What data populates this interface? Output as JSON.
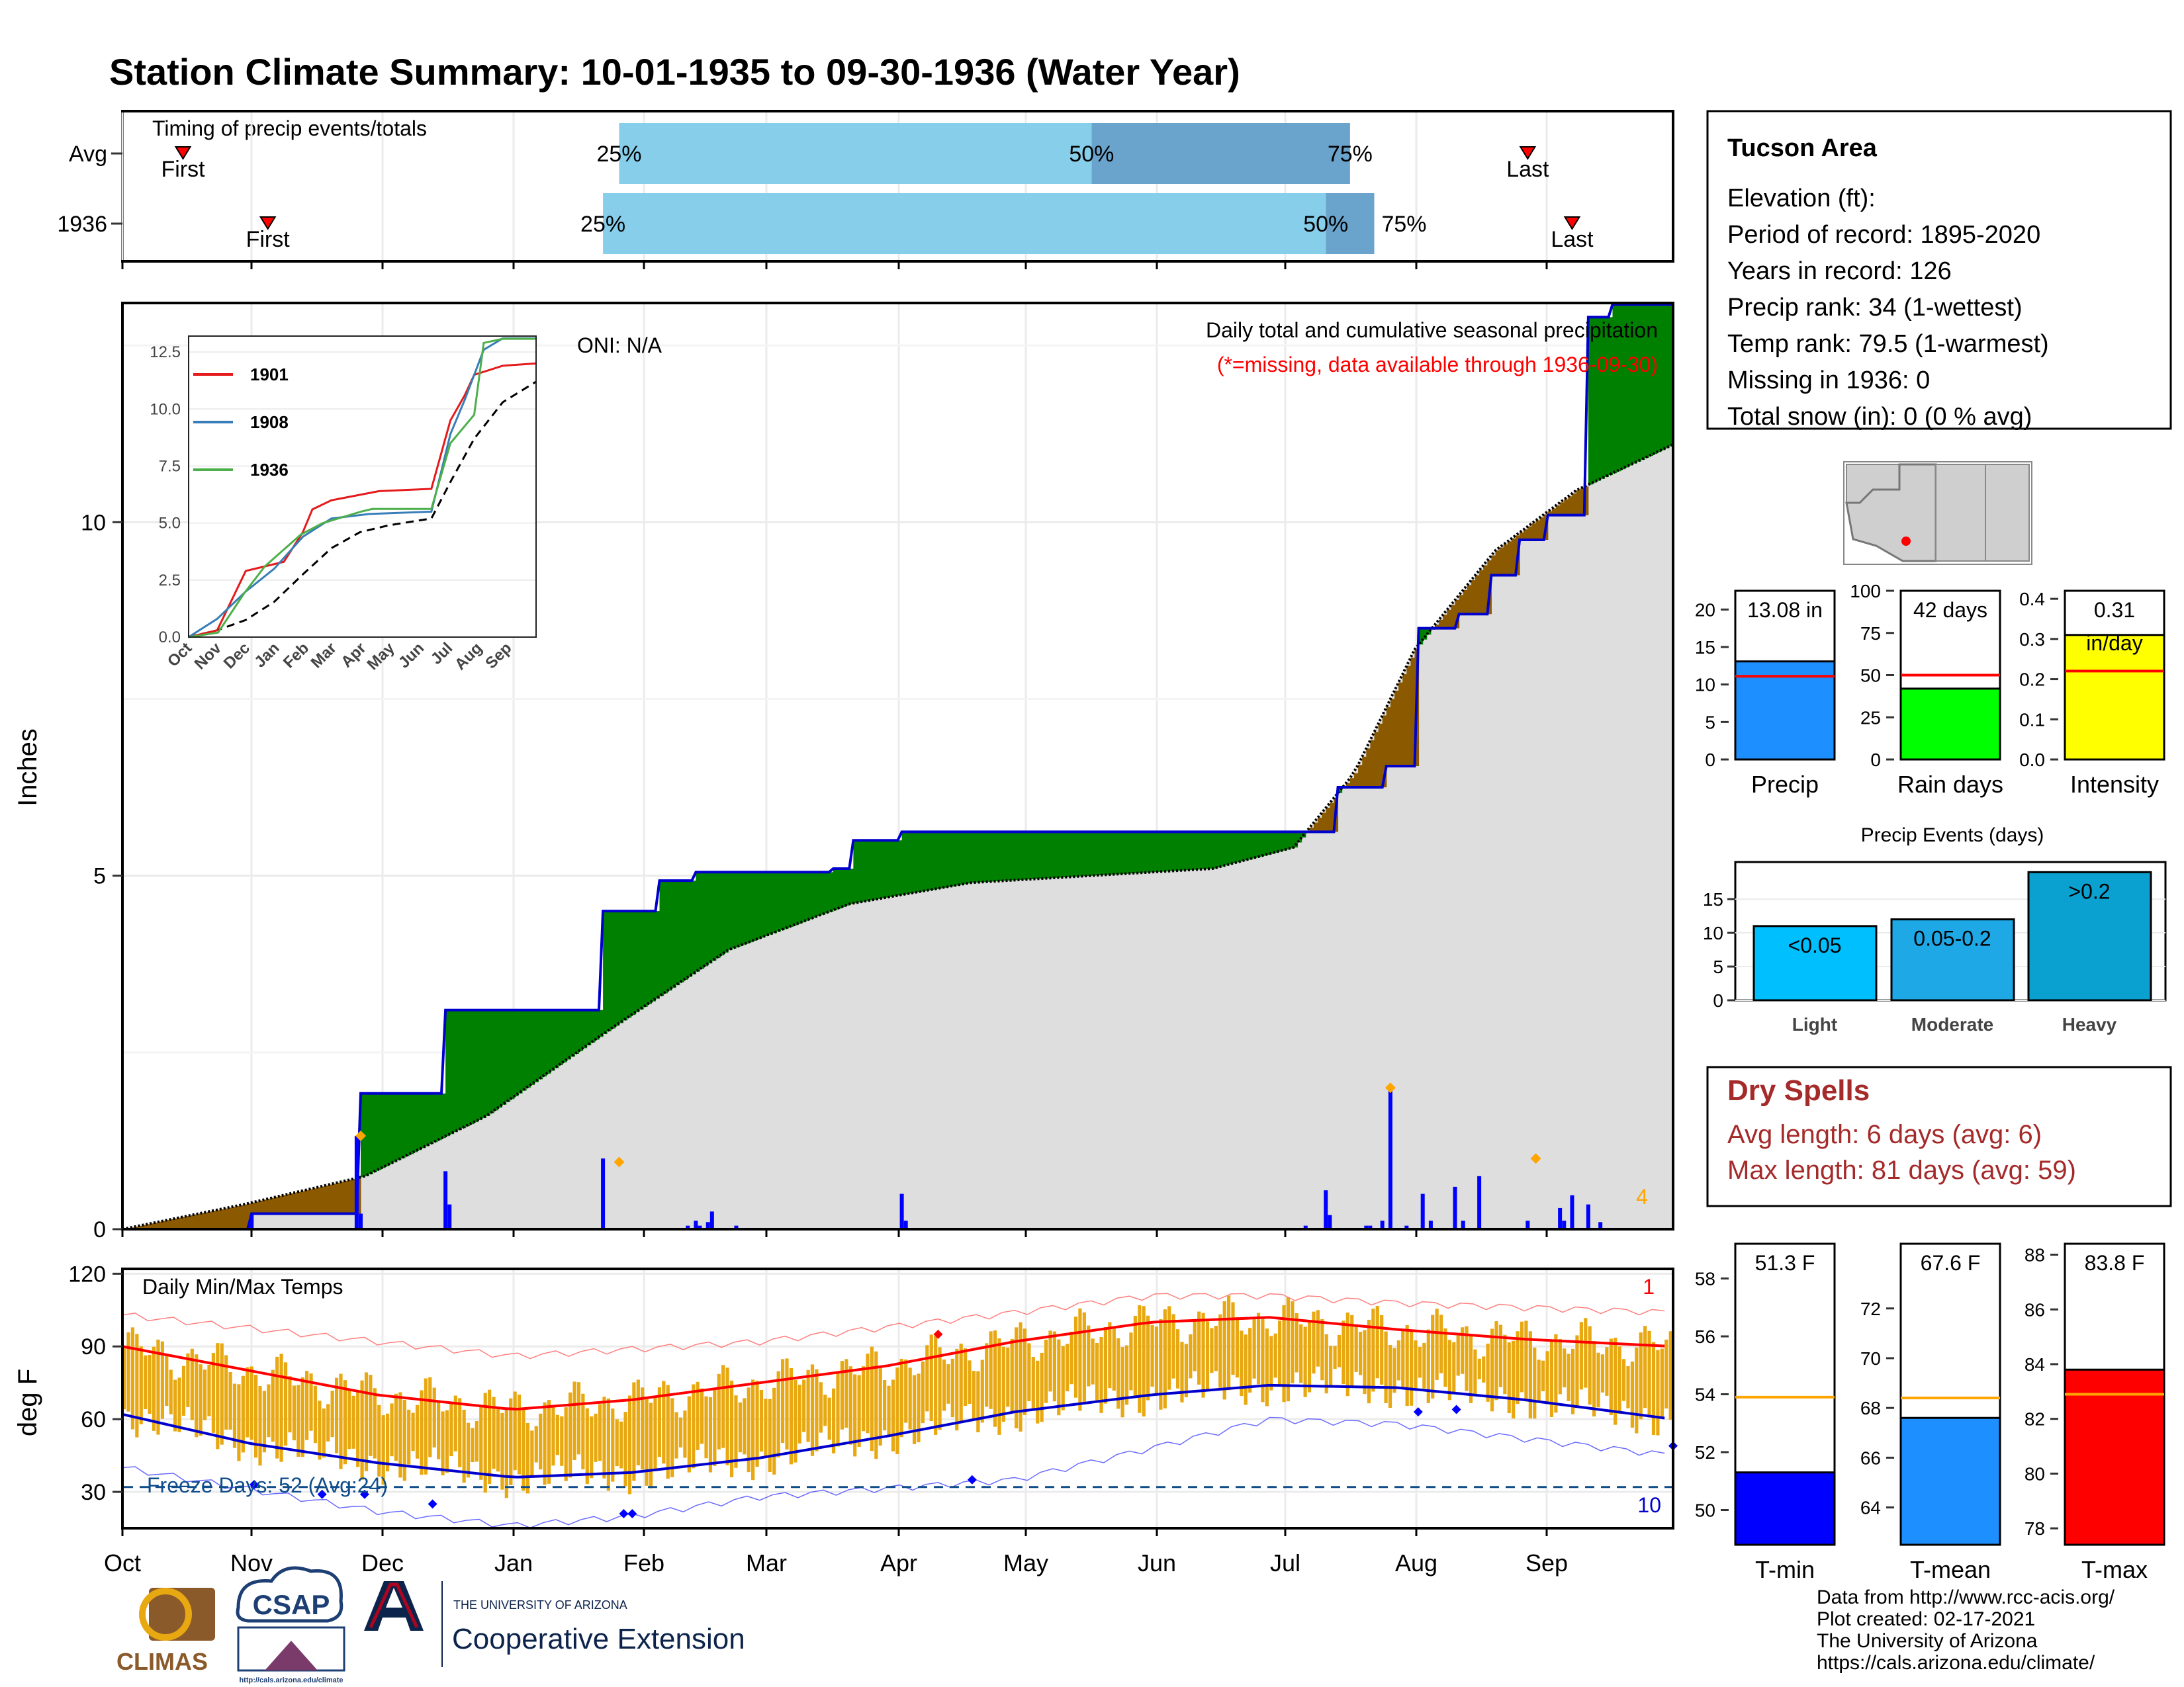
{
  "title": "Station Climate Summary: 10-01-1935 to 09-30-1936 (Water Year)",
  "timing": {
    "label": "Timing of precip events/totals",
    "rows": [
      {
        "name": "Avg",
        "first_day": 15,
        "q25": 123,
        "q50": 240,
        "q75": 304,
        "last_day": 348
      },
      {
        "name": "1936",
        "first_day": 36,
        "q25": 119,
        "q50": 298,
        "q75": 310,
        "last_day": 359
      }
    ],
    "first_label": "First",
    "last_label": "Last",
    "q25_label": "25%",
    "q50_label": "50%",
    "q75_label": "75%"
  },
  "precip_panel": {
    "ylabel": "Inches",
    "oni": "ONI: N/A",
    "caption": "Daily total and cumulative seasonal precipitation",
    "caption_missing": "(*=missing, data available through 1936-09-30)",
    "count_label": "4",
    "yticks": [
      0,
      5,
      10
    ]
  },
  "temp_panel": {
    "ylabel": "deg F",
    "label": "Daily Min/Max Temps",
    "freeze_label": "Freeze Days: 52 (Avg:24)",
    "record_high_count": "1",
    "record_low_count": "10",
    "yticks": [
      30,
      60,
      90,
      120
    ]
  },
  "months": [
    "Oct",
    "Nov",
    "Dec",
    "Jan",
    "Feb",
    "Mar",
    "Apr",
    "May",
    "Jun",
    "Jul",
    "Aug",
    "Sep"
  ],
  "inset": {
    "legend": [
      "1901",
      "1908",
      "1936"
    ],
    "colors": [
      "#e41a1c",
      "#377eb8",
      "#4daf4a"
    ],
    "yticks": [
      "0.0",
      "2.5",
      "5.0",
      "7.5",
      "10.0",
      "12.5"
    ],
    "xticks": [
      "Oct",
      "Nov",
      "Dec",
      "Jan",
      "Feb",
      "Mar",
      "Apr",
      "May",
      "Jun",
      "Jul",
      "Aug",
      "Sep"
    ]
  },
  "info": {
    "station": "Tucson Area",
    "lines": [
      "Elevation (ft):",
      "Period of record: 1895-2020",
      "Years in record: 126",
      "Precip rank: 34 (1-wettest)",
      "Temp rank: 79.5 (1-warmest)",
      "Missing in 1936: 0",
      "Total snow (in): 0 (0 % avg)"
    ]
  },
  "dry_spells": {
    "title": "Dry Spells",
    "avg": "Avg length: 6 days (avg: 6)",
    "max": "Max length: 81 days (avg: 59)"
  },
  "precip_events": {
    "title": "Precip Events (days)",
    "categories": [
      "Light",
      "Moderate",
      "Heavy"
    ],
    "labels": [
      "<0.05",
      "0.05-0.2",
      ">0.2"
    ],
    "values": [
      11,
      12,
      19
    ],
    "yticks": [
      0,
      5,
      10,
      15
    ]
  },
  "footer": {
    "lines": [
      "Data from http://www.rcc-acis.org/",
      "Plot created: 02-17-2021",
      "The University of Arizona",
      "https://cals.arizona.edu/climate/"
    ],
    "logos": {
      "climas": "CLIMAS",
      "csap": "CSAP",
      "ua_small": "THE UNIVERSITY OF ARIZONA",
      "ua_big": "Cooperative Extension",
      "csap_url": "http://cals.arizona.edu/climate"
    }
  },
  "chart_data": [
    {
      "type": "area",
      "title": "Daily total and cumulative seasonal precipitation",
      "ylabel": "Inches",
      "ylim": [
        0,
        13.1
      ],
      "cumulative_1936": [
        [
          0,
          0
        ],
        [
          31,
          0
        ],
        [
          32,
          0.22
        ],
        [
          58,
          0.22
        ],
        [
          59,
          1.92
        ],
        [
          79,
          1.92
        ],
        [
          80,
          3.1
        ],
        [
          118,
          3.1
        ],
        [
          119,
          4.5
        ],
        [
          132,
          4.5
        ],
        [
          133,
          4.93
        ],
        [
          141,
          4.93
        ],
        [
          142,
          5.05
        ],
        [
          175,
          5.05
        ],
        [
          176,
          5.1
        ],
        [
          180,
          5.1
        ],
        [
          181,
          5.5
        ],
        [
          192,
          5.5
        ],
        [
          193,
          5.62
        ],
        [
          300,
          5.62
        ],
        [
          301,
          6.25
        ],
        [
          312,
          6.25
        ],
        [
          313,
          6.55
        ],
        [
          320,
          6.55
        ],
        [
          321,
          8.5
        ],
        [
          330,
          8.5
        ],
        [
          331,
          8.7
        ],
        [
          338,
          8.7
        ],
        [
          339,
          9.25
        ],
        [
          345,
          9.25
        ],
        [
          346,
          9.75
        ],
        [
          352,
          9.75
        ],
        [
          353,
          10.1
        ],
        [
          362,
          10.1
        ],
        [
          363,
          12.9
        ],
        [
          368,
          12.9
        ],
        [
          369,
          13.08
        ],
        [
          375,
          13.08
        ],
        [
          376,
          13.08
        ],
        [
          379,
          13.08
        ],
        [
          380,
          13.08
        ],
        [
          384,
          13.08
        ]
      ],
      "cumulative_avg": [
        [
          0,
          0
        ],
        [
          30,
          0.35
        ],
        [
          60,
          0.75
        ],
        [
          90,
          1.6
        ],
        [
          120,
          2.8
        ],
        [
          150,
          3.95
        ],
        [
          180,
          4.6
        ],
        [
          210,
          4.9
        ],
        [
          240,
          5.0
        ],
        [
          270,
          5.1
        ],
        [
          290,
          5.4
        ],
        [
          305,
          6.45
        ],
        [
          320,
          8.2
        ],
        [
          340,
          9.6
        ],
        [
          360,
          10.45
        ],
        [
          384,
          11.1
        ]
      ],
      "daily_precip": [
        [
          32,
          0.2
        ],
        [
          58,
          1.32
        ],
        [
          59,
          0.22
        ],
        [
          80,
          0.82
        ],
        [
          81,
          0.35
        ],
        [
          119,
          1.0
        ],
        [
          140,
          0.05
        ],
        [
          142,
          0.12
        ],
        [
          143,
          0.05
        ],
        [
          145,
          0.1
        ],
        [
          146,
          0.25
        ],
        [
          152,
          0.05
        ],
        [
          193,
          0.5
        ],
        [
          194,
          0.12
        ],
        [
          293,
          0.05
        ],
        [
          298,
          0.55
        ],
        [
          299,
          0.2
        ],
        [
          308,
          0.05
        ],
        [
          309,
          0.05
        ],
        [
          312,
          0.12
        ],
        [
          314,
          1.98
        ],
        [
          318,
          0.05
        ],
        [
          322,
          0.5
        ],
        [
          324,
          0.12
        ],
        [
          330,
          0.6
        ],
        [
          332,
          0.12
        ],
        [
          336,
          0.75
        ],
        [
          348,
          0.12
        ],
        [
          356,
          0.3
        ],
        [
          357,
          0.12
        ],
        [
          359,
          0.48
        ],
        [
          363,
          0.35
        ],
        [
          366,
          0.1
        ]
      ],
      "daily_max_labels": [
        [
          59,
          1.32
        ],
        [
          123,
          0.95
        ],
        [
          314,
          2.0
        ],
        [
          350,
          1.0
        ]
      ]
    },
    {
      "type": "line",
      "title": "Daily Min/Max Temps",
      "ylabel": "deg F",
      "ylim": [
        15,
        122
      ],
      "normal_max": [
        [
          0,
          90
        ],
        [
          30,
          80
        ],
        [
          60,
          70
        ],
        [
          92,
          64
        ],
        [
          120,
          68
        ],
        [
          150,
          75
        ],
        [
          180,
          82
        ],
        [
          210,
          92
        ],
        [
          242,
          100
        ],
        [
          270,
          102
        ],
        [
          300,
          97
        ],
        [
          330,
          93
        ],
        [
          365,
          90
        ]
      ],
      "normal_min": [
        [
          0,
          62
        ],
        [
          30,
          50
        ],
        [
          60,
          42
        ],
        [
          92,
          36
        ],
        [
          120,
          38
        ],
        [
          150,
          44
        ],
        [
          180,
          53
        ],
        [
          210,
          63
        ],
        [
          242,
          70
        ],
        [
          270,
          74
        ],
        [
          300,
          73
        ],
        [
          330,
          68
        ],
        [
          365,
          60
        ]
      ],
      "record_max": [
        [
          0,
          103
        ],
        [
          60,
          92
        ],
        [
          92,
          86
        ],
        [
          150,
          92
        ],
        [
          210,
          104
        ],
        [
          242,
          111
        ],
        [
          270,
          111
        ],
        [
          300,
          108
        ],
        [
          365,
          104
        ]
      ],
      "record_min": [
        [
          0,
          40
        ],
        [
          60,
          22
        ],
        [
          92,
          16
        ],
        [
          120,
          20
        ],
        [
          150,
          28
        ],
        [
          210,
          35
        ],
        [
          242,
          48
        ],
        [
          270,
          60
        ],
        [
          300,
          58
        ],
        [
          365,
          45
        ]
      ],
      "freeze_line": 32
    },
    {
      "type": "line",
      "title": "",
      "series": [
        {
          "name": "1901",
          "values": [
            [
              0,
              0
            ],
            [
              30,
              0.3
            ],
            [
              60,
              2.9
            ],
            [
              100,
              3.3
            ],
            [
              120,
              4.6
            ],
            [
              130,
              5.6
            ],
            [
              150,
              6.0
            ],
            [
              200,
              6.4
            ],
            [
              255,
              6.5
            ],
            [
              275,
              9.5
            ],
            [
              290,
              10.6
            ],
            [
              300,
              11.5
            ],
            [
              330,
              11.9
            ],
            [
              365,
              12.0
            ]
          ]
        },
        {
          "name": "1908",
          "values": [
            [
              0,
              0
            ],
            [
              30,
              0.8
            ],
            [
              60,
              2.0
            ],
            [
              90,
              3.0
            ],
            [
              120,
              4.4
            ],
            [
              150,
              5.2
            ],
            [
              190,
              5.4
            ],
            [
              255,
              5.5
            ],
            [
              275,
              8.9
            ],
            [
              290,
              10.4
            ],
            [
              310,
              12.6
            ],
            [
              330,
              13.1
            ],
            [
              365,
              13.1
            ]
          ]
        },
        {
          "name": "1936",
          "values": [
            [
              0,
              0
            ],
            [
              31,
              0.2
            ],
            [
              58,
              1.9
            ],
            [
              80,
              3.1
            ],
            [
              118,
              4.5
            ],
            [
              141,
              5.0
            ],
            [
              181,
              5.5
            ],
            [
              193,
              5.62
            ],
            [
              255,
              5.62
            ],
            [
              275,
              8.5
            ],
            [
              300,
              9.75
            ],
            [
              310,
              12.9
            ],
            [
              330,
              13.08
            ],
            [
              365,
              13.08
            ]
          ]
        }
      ],
      "avg": [
        [
          0,
          0
        ],
        [
          30,
          0.3
        ],
        [
          60,
          0.75
        ],
        [
          90,
          1.55
        ],
        [
          120,
          2.75
        ],
        [
          150,
          3.9
        ],
        [
          180,
          4.6
        ],
        [
          210,
          4.9
        ],
        [
          255,
          5.2
        ],
        [
          275,
          6.8
        ],
        [
          300,
          8.7
        ],
        [
          330,
          10.3
        ],
        [
          365,
          11.2
        ]
      ],
      "ylim": [
        0,
        13.2
      ]
    },
    {
      "type": "bar",
      "title": "",
      "categories": [
        "Precip",
        "Rain days",
        "Intensity"
      ],
      "values": [
        13.08,
        42,
        0.31
      ],
      "averages": [
        11.1,
        50,
        0.22
      ],
      "value_labels": [
        "13.08 in",
        "42 days",
        "0.31"
      ],
      "unit_labels": [
        "",
        "",
        "in/day"
      ],
      "ylims": [
        [
          0,
          22.5
        ],
        [
          0,
          100
        ],
        [
          0,
          0.42
        ]
      ],
      "yticks": [
        [
          0,
          5,
          10,
          15,
          20
        ],
        [
          0,
          25,
          50,
          75,
          100
        ],
        [
          0.0,
          0.1,
          0.2,
          0.3,
          0.4
        ]
      ],
      "colors": [
        "#1e8fff",
        "#00ff00",
        "#ffff00"
      ]
    },
    {
      "type": "bar",
      "title": "",
      "categories": [
        "T-min",
        "T-mean",
        "T-max"
      ],
      "values": [
        51.3,
        67.6,
        83.8
      ],
      "averages": [
        53.9,
        68.4,
        82.9
      ],
      "value_labels": [
        "51.3 F",
        "67.6 F",
        "83.8 F"
      ],
      "ylims": [
        [
          48.8,
          59.2
        ],
        [
          62.5,
          74.6
        ],
        [
          77.4,
          88.4
        ]
      ],
      "yticks": [
        [
          50,
          52,
          54,
          56,
          58
        ],
        [
          64,
          66,
          68,
          70,
          72
        ],
        [
          78,
          80,
          82,
          84,
          86,
          88
        ]
      ],
      "colors": [
        "#0000ff",
        "#1e8fff",
        "#ff0000"
      ]
    }
  ],
  "colors": {
    "title": "#8b2500",
    "surplus": "#008000",
    "deficit": "#8b5a00",
    "avg_fill": "#dedede",
    "daily_bar": "#0000ff",
    "cum_line": "#0000cd",
    "q_light": "#87ceeb",
    "q_dark": "#6aa3cc",
    "temp_bar": "#e8a811",
    "normal_max": "#ff0000",
    "normal_min": "#0000cd",
    "dry": "#a52a2a",
    "freeze": "#104e8b",
    "marker": "#ffa500",
    "ua_blue": "#0c234b",
    "ua_red": "#ab0520"
  }
}
